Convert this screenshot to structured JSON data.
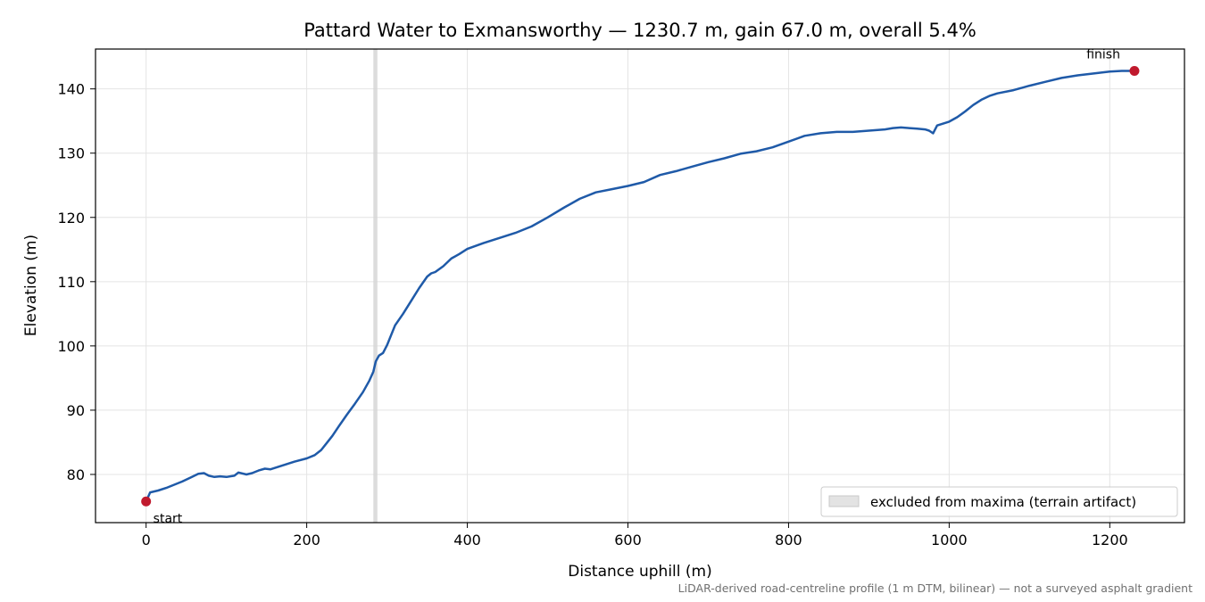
{
  "chart_data": {
    "type": "line",
    "title": "Pattard Water to Exmansworthy — 1230.7 m, gain 67.0 m, overall 5.4%",
    "xlabel": "Distance uphill (m)",
    "ylabel": "Elevation (m)",
    "xlim": [
      -63,
      1293
    ],
    "ylim": [
      72.5,
      146.2
    ],
    "xticks": [
      0,
      200,
      400,
      600,
      800,
      1000,
      1200
    ],
    "yticks": [
      80,
      90,
      100,
      110,
      120,
      130,
      140
    ],
    "grid": true,
    "legend_placement": "lower-right",
    "footnote": "LiDAR-derived road-centreline profile (1 m DTM, bilinear) — not a surveyed asphalt gradient",
    "excluded_band": {
      "x": [
        283,
        288
      ],
      "label": "excluded from maxima (terrain artifact)",
      "color": "#d6d6d6"
    },
    "series": [
      {
        "color": "#1f5aa8",
        "x": [
          0,
          5,
          15,
          25,
          35,
          45,
          55,
          65,
          72,
          78,
          85,
          92,
          100,
          110,
          115,
          125,
          132,
          140,
          148,
          155,
          165,
          175,
          185,
          200,
          210,
          218,
          225,
          232,
          240,
          250,
          260,
          270,
          278,
          283,
          286,
          290,
          295,
          300,
          310,
          320,
          330,
          340,
          350,
          355,
          360,
          370,
          380,
          390,
          400,
          420,
          440,
          460,
          480,
          500,
          520,
          540,
          560,
          580,
          600,
          620,
          640,
          660,
          680,
          700,
          720,
          740,
          760,
          780,
          800,
          820,
          840,
          860,
          880,
          900,
          920,
          930,
          940,
          950,
          960,
          970,
          975,
          980,
          985,
          1000,
          1010,
          1020,
          1030,
          1040,
          1050,
          1060,
          1080,
          1100,
          1120,
          1140,
          1160,
          1180,
          1200,
          1215,
          1230.7
        ],
        "values": [
          75.8,
          77.2,
          77.5,
          77.9,
          78.4,
          78.9,
          79.5,
          80.1,
          80.2,
          79.8,
          79.6,
          79.7,
          79.6,
          79.8,
          80.3,
          80.0,
          80.2,
          80.6,
          80.9,
          80.8,
          81.2,
          81.6,
          82.0,
          82.5,
          83.0,
          83.8,
          84.9,
          86.0,
          87.5,
          89.3,
          91.0,
          92.8,
          94.6,
          96.0,
          97.6,
          98.5,
          98.9,
          100.1,
          103.2,
          105.0,
          107.0,
          109.0,
          110.8,
          111.3,
          111.5,
          112.4,
          113.6,
          114.3,
          115.1,
          116.0,
          116.8,
          117.6,
          118.6,
          120.0,
          121.5,
          122.9,
          123.9,
          124.4,
          124.9,
          125.5,
          126.6,
          127.2,
          127.9,
          128.6,
          129.2,
          129.9,
          130.3,
          130.9,
          131.8,
          132.7,
          133.1,
          133.3,
          133.3,
          133.5,
          133.7,
          133.9,
          134.0,
          133.9,
          133.8,
          133.7,
          133.5,
          133.1,
          134.3,
          134.9,
          135.6,
          136.5,
          137.5,
          138.3,
          138.9,
          139.3,
          139.8,
          140.5,
          141.1,
          141.7,
          142.1,
          142.4,
          142.7,
          142.8,
          142.8
        ]
      }
    ],
    "markers": [
      {
        "label": "start",
        "x": 0,
        "y": 75.8,
        "color": "#c0192d"
      },
      {
        "label": "finish",
        "x": 1230.7,
        "y": 142.8,
        "color": "#c0192d"
      }
    ]
  }
}
